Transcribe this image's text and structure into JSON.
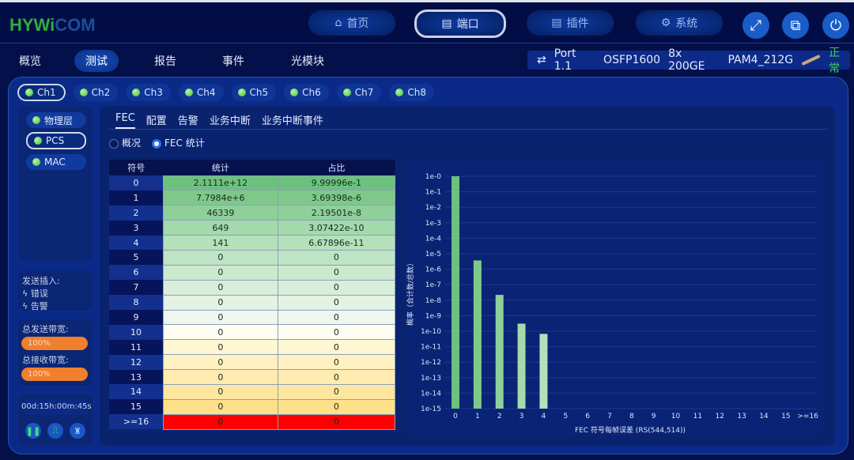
{
  "header": {
    "logo_part1": "HYWi",
    "logo_part2": "COM",
    "nav": [
      {
        "label": "首页",
        "icon": "home-icon"
      },
      {
        "label": "端口",
        "icon": "port-icon",
        "active": true
      },
      {
        "label": "插件",
        "icon": "plugin-icon"
      },
      {
        "label": "系统",
        "icon": "gear-icon"
      }
    ],
    "icons": [
      "fullscreen-icon",
      "screenshot-icon",
      "power-icon"
    ]
  },
  "menu": {
    "items": [
      "概览",
      "测试",
      "报告",
      "事件",
      "光模块"
    ],
    "active": "测试"
  },
  "port": {
    "name": "Port 1.1",
    "module": "OSFP1600",
    "rate": "8x 200GE",
    "mode": "PAM4_212G",
    "status": "正常",
    "status_color": "#3fcf52"
  },
  "channels": [
    "Ch1",
    "Ch2",
    "Ch3",
    "Ch4",
    "Ch5",
    "Ch6",
    "Ch7",
    "Ch8"
  ],
  "layers": [
    "物理层",
    "PCS",
    "MAC"
  ],
  "inject": {
    "title": "发送插入:",
    "items": [
      "错误",
      "告警"
    ]
  },
  "bandwidth": {
    "tx_label": "总发送带宽:",
    "tx_value": "100%",
    "tx_percent": 100,
    "rx_label": "总接收带宽:",
    "rx_value": "100%",
    "rx_percent": 100
  },
  "timer": "00d:15h:00m:45s",
  "controls": [
    "pause-icon",
    "pulse-icon",
    "clear-icon"
  ],
  "subtabs": [
    "FEC",
    "配置",
    "告警",
    "业务中断",
    "业务中断事件"
  ],
  "radios": [
    {
      "label": "概况",
      "checked": false
    },
    {
      "label": "FEC 统计",
      "checked": true
    }
  ],
  "table": {
    "headers": [
      "符号",
      "统计",
      "占比"
    ],
    "rows": [
      [
        "0",
        "2.1111e+12",
        "9.99996e-1"
      ],
      [
        "1",
        "7.7984e+6",
        "3.69398e-6"
      ],
      [
        "2",
        "46339",
        "2.19501e-8"
      ],
      [
        "3",
        "649",
        "3.07422e-10"
      ],
      [
        "4",
        "141",
        "6.67896e-11"
      ],
      [
        "5",
        "0",
        "0"
      ],
      [
        "6",
        "0",
        "0"
      ],
      [
        "7",
        "0",
        "0"
      ],
      [
        "8",
        "0",
        "0"
      ],
      [
        "9",
        "0",
        "0"
      ],
      [
        "10",
        "0",
        "0"
      ],
      [
        "11",
        "0",
        "0"
      ],
      [
        "12",
        "0",
        "0"
      ],
      [
        "13",
        "0",
        "0"
      ],
      [
        "14",
        "0",
        "0"
      ],
      [
        "15",
        "0",
        "0"
      ],
      [
        ">=16",
        "0",
        "0"
      ]
    ],
    "row_colors": [
      "#6cc17e",
      "#7ec98a",
      "#8fd09a",
      "#a3d9ab",
      "#b4e0ba",
      "#bfe4c3",
      "#cce9cf",
      "#d8eed9",
      "#e3f2e3",
      "#eef6ee",
      "#fffdf2",
      "#fff6d2",
      "#fff1c2",
      "#ffebb0",
      "#ffe69e",
      "#ffe08a",
      "#ff0000"
    ]
  },
  "chart_data": {
    "type": "bar",
    "ylabel": "概率（合计数/总数）",
    "xlabel": "FEC 符号每帧误差 (RS(544,514))",
    "yscale": "log",
    "ylim": [
      1e-15,
      1
    ],
    "yticks": [
      "1e-0",
      "1e-1",
      "1e-2",
      "1e-3",
      "1e-4",
      "1e-5",
      "1e-6",
      "1e-7",
      "1e-8",
      "1e-9",
      "1e-10",
      "1e-11",
      "1e-12",
      "1e-13",
      "1e-14",
      "1e-15"
    ],
    "categories": [
      "0",
      "1",
      "2",
      "3",
      "4",
      "5",
      "6",
      "7",
      "8",
      "9",
      "10",
      "11",
      "12",
      "13",
      "14",
      "15",
      ">=16"
    ],
    "values": [
      0.999996,
      3.69398e-06,
      2.19501e-08,
      3.07422e-10,
      6.67896e-11,
      0,
      0,
      0,
      0,
      0,
      0,
      0,
      0,
      0,
      0,
      0,
      0
    ],
    "bar_colors": [
      "#6cc17e",
      "#7ec98a",
      "#8fd09a",
      "#a3d9ab",
      "#b4e0ba"
    ],
    "grid": true
  }
}
